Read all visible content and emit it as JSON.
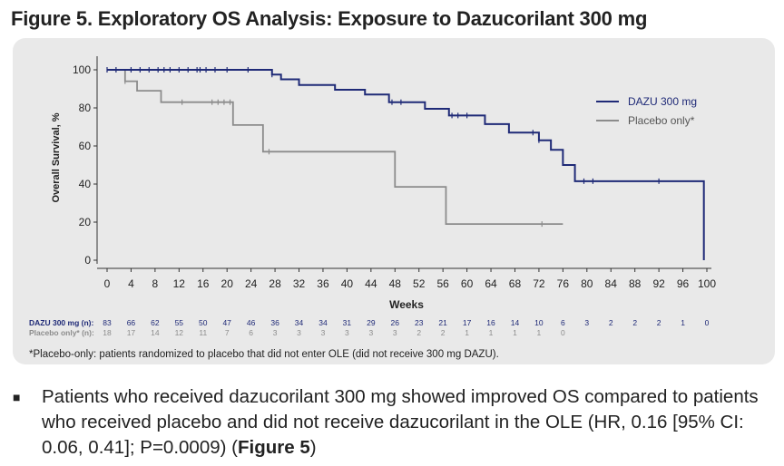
{
  "figure": {
    "title": "Figure 5. Exploratory OS Analysis: Exposure to Dazucorilant 300 mg",
    "footnote": "*Placebo-only: patients randomized to placebo that did not enter OLE (did not receive 300 mg DAZU)."
  },
  "bullet": {
    "text_before": "Patients who received dazucorilant 300 mg showed improved OS compared to patients who received placebo and did not receive dazucorilant in the OLE (HR, 0.16 [95% CI: 0.06, 0.41]; P=0.0009) (",
    "bold": "Figure 5",
    "text_after": ")"
  },
  "colors": {
    "dazu": "#1f2a77",
    "placebo": "#8c8c8c",
    "panel": "#e9e9e9"
  },
  "chart_data": {
    "type": "line",
    "subtype": "kaplan-meier step",
    "xlabel": "Weeks",
    "ylabel": "Overall Survival, %",
    "xlim": [
      0,
      100
    ],
    "ylim": [
      0,
      100
    ],
    "xticks": [
      0,
      4,
      8,
      12,
      16,
      20,
      24,
      28,
      32,
      36,
      40,
      44,
      48,
      52,
      56,
      60,
      64,
      68,
      72,
      76,
      80,
      84,
      88,
      92,
      96,
      100
    ],
    "yticks": [
      0,
      20,
      40,
      60,
      80,
      100
    ],
    "legend": "right",
    "series": [
      {
        "name": "DAZU 300 mg",
        "color": "#1f2a77",
        "steps": [
          [
            0,
            100
          ],
          [
            27.5,
            97.5
          ],
          [
            29,
            95
          ],
          [
            32,
            92
          ],
          [
            38,
            89.5
          ],
          [
            43,
            87
          ],
          [
            47,
            83
          ],
          [
            53,
            79.5
          ],
          [
            57,
            76
          ],
          [
            63,
            71.5
          ],
          [
            67,
            67
          ],
          [
            72,
            63
          ],
          [
            74,
            58
          ],
          [
            76,
            50
          ],
          [
            78,
            41.5
          ],
          [
            99.5,
            41.5
          ],
          [
            99.5,
            0
          ]
        ],
        "censor": [
          0,
          1.5,
          4,
          5.5,
          7,
          8.5,
          9.5,
          10.5,
          12,
          13.5,
          15,
          15.5,
          16.5,
          18,
          20,
          23.5,
          27.5,
          47.5,
          49,
          57.5,
          58.5,
          60,
          71,
          72,
          79.5,
          81,
          92
        ]
      },
      {
        "name": "Placebo only*",
        "color": "#8c8c8c",
        "steps": [
          [
            0,
            100
          ],
          [
            3,
            94
          ],
          [
            5,
            89
          ],
          [
            9,
            83
          ],
          [
            21,
            71
          ],
          [
            26,
            57
          ],
          [
            48,
            38.5
          ],
          [
            56.5,
            19
          ],
          [
            76,
            19
          ]
        ],
        "censor": [
          1.5,
          3,
          12.5,
          17.5,
          18.5,
          19.5,
          20.5,
          27,
          72.5
        ]
      }
    ],
    "risk_table": {
      "x": [
        0,
        4,
        8,
        12,
        16,
        20,
        24,
        28,
        32,
        36,
        40,
        44,
        48,
        52,
        56,
        60,
        64,
        68,
        72,
        76,
        80,
        84,
        88,
        92,
        96,
        100
      ],
      "rows": [
        {
          "label": "DAZU 300 mg (n):",
          "color": "#1f2a77",
          "values": [
            "83",
            "66",
            "62",
            "55",
            "50",
            "47",
            "46",
            "36",
            "34",
            "34",
            "31",
            "29",
            "26",
            "23",
            "21",
            "17",
            "16",
            "14",
            "10",
            "6",
            "3",
            "2",
            "2",
            "2",
            "1",
            "0"
          ]
        },
        {
          "label": "Placebo only* (n):",
          "color": "#8c8c8c",
          "values": [
            "18",
            "17",
            "14",
            "12",
            "11",
            "7",
            "6",
            "3",
            "3",
            "3",
            "3",
            "3",
            "3",
            "2",
            "2",
            "1",
            "1",
            "1",
            "1",
            "0"
          ]
        }
      ]
    }
  }
}
